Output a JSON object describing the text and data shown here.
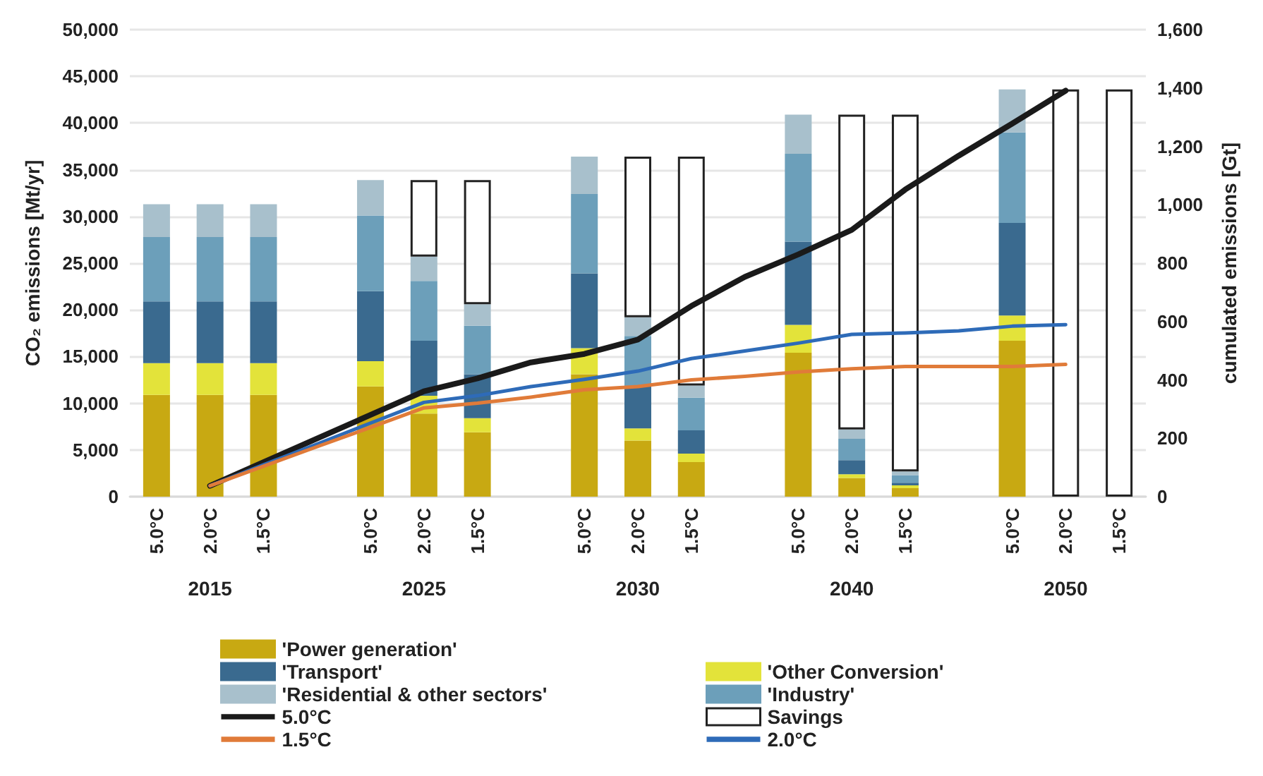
{
  "chart_data": {
    "type": "bar",
    "stacked": true,
    "categories": [
      "5.0°C",
      "2.0°C",
      "1.5°C",
      null,
      "5.0°C",
      "2.0°C",
      "1.5°C",
      null,
      "5.0°C",
      "2.0°C",
      "1.5°C",
      null,
      "5.0°C",
      "2.0°C",
      "1.5°C",
      null,
      "5.0°C",
      "2.0°C",
      "1.5°C"
    ],
    "annotations": [
      "2015",
      "2025",
      "2030",
      "2040",
      "2050"
    ],
    "ylabel": "CO₂ emissions [Mt/yr]",
    "y2label": "cumulated emissions [Gt]",
    "ylim": [
      0,
      50000
    ],
    "yticks": [
      0,
      {
        "value": 5000,
        "label": "5,000"
      },
      {
        "value": 10000,
        "label": "10,000"
      },
      {
        "value": 15000,
        "label": "15,000"
      },
      {
        "value": 20000,
        "label": "20,000"
      },
      {
        "value": 25000,
        "label": "25,000"
      },
      {
        "value": 30000,
        "label": "30,000"
      },
      {
        "value": 35000,
        "label": "35,000"
      },
      {
        "value": 40000,
        "label": "40,000"
      },
      {
        "value": 45000,
        "label": "45,000"
      },
      {
        "value": 50000,
        "label": "50,000"
      }
    ],
    "y2lim": [
      0,
      1600
    ],
    "y2ticks": [
      0,
      200,
      400,
      600,
      800,
      {
        "value": 1000,
        "label": "1,000"
      },
      {
        "value": 1200,
        "label": "1,200"
      },
      {
        "value": 1400,
        "label": "1,400"
      },
      {
        "value": 1600,
        "label": "1,600"
      }
    ],
    "grid": "y",
    "legend": "bottom",
    "series": [
      {
        "name": "'Power generation'",
        "color": "#c8a912",
        "values": [
          10900,
          10900,
          10900,
          null,
          11800,
          8900,
          6900,
          null,
          13100,
          6000,
          3700,
          null,
          15400,
          2000,
          900,
          null,
          16700,
          null,
          null
        ]
      },
      {
        "name": "'Other Conversion'",
        "color": "#e3e33a",
        "values": [
          3400,
          3400,
          3400,
          null,
          2700,
          1900,
          1500,
          null,
          2800,
          1300,
          900,
          null,
          3000,
          400,
          300,
          null,
          2700,
          null,
          null
        ]
      },
      {
        "name": "'Transport'",
        "color": "#3a6a8f",
        "values": [
          6600,
          6600,
          6600,
          null,
          7500,
          5900,
          4700,
          null,
          8000,
          4500,
          2500,
          null,
          8900,
          1500,
          300,
          null,
          9900,
          null,
          null
        ]
      },
      {
        "name": "'Industry'",
        "color": "#6c9fba",
        "values": [
          6900,
          6900,
          6900,
          null,
          8100,
          6400,
          5200,
          null,
          8500,
          5400,
          3500,
          null,
          9400,
          2300,
          800,
          null,
          9700,
          null,
          null
        ]
      },
      {
        "name": "'Residential & other sectors'",
        "color": "#a8c0cc",
        "values": [
          3500,
          3500,
          3500,
          null,
          3800,
          2600,
          2300,
          null,
          4000,
          2000,
          1300,
          null,
          4200,
          1000,
          400,
          null,
          4600,
          null,
          null
        ]
      },
      {
        "name": "Savings",
        "color": "#ffffff",
        "values": [
          null,
          null,
          null,
          null,
          null,
          8200,
          13300,
          null,
          null,
          17200,
          24500,
          null,
          null,
          33700,
          38200,
          null,
          null,
          43600,
          43600
        ]
      },
      {
        "name": "5.0°C",
        "type": "line",
        "axis": "y2",
        "color": "#1a1a1a",
        "marker": "none",
        "values": [
          null,
          37,
          118,
          199,
          280,
          361,
          405,
          460,
          489,
          538,
          653,
          753,
          830,
          914,
          1052,
          1168,
          1278,
          1391,
          null
        ]
      },
      {
        "name": "2.0°C",
        "type": "line",
        "axis": "y2",
        "color": "#2e6bb8",
        "marker": "none",
        "values": [
          null,
          37,
          109,
          180,
          252,
          323,
          346,
          377,
          402,
          430,
          473,
          499,
          526,
          556,
          561,
          568,
          584,
          589,
          null
        ]
      },
      {
        "name": "1.5°C",
        "type": "line",
        "axis": "y2",
        "color": "#e07b39",
        "marker": "none",
        "values": [
          null,
          37,
          104,
          171,
          237,
          304,
          320,
          341,
          366,
          377,
          400,
          412,
          427,
          438,
          446,
          446,
          446,
          453,
          null
        ]
      }
    ]
  }
}
